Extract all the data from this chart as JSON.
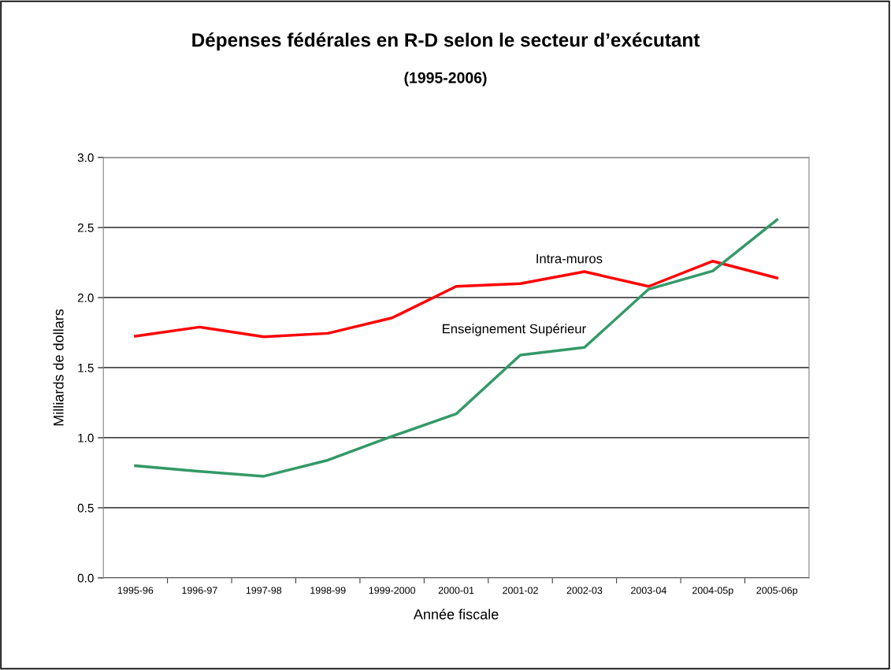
{
  "chart_data": {
    "type": "line",
    "title": "Dépenses fédérales en R-D selon le secteur d’exécutant",
    "subtitle": "(1995-2006)",
    "xlabel": "Année fiscale",
    "ylabel": "Milliards de dollars",
    "categories": [
      "1995-96",
      "1996-97",
      "1997-98",
      "1998-99",
      "1999-2000",
      "2000-01",
      "2001-02",
      "2002-03",
      "2003-04",
      "2004-05p",
      "2005-06p"
    ],
    "series": [
      {
        "name": "Intra-muros",
        "color": "#ff0000",
        "values": [
          1.725,
          1.79,
          1.72,
          1.745,
          1.855,
          2.08,
          2.1,
          2.185,
          2.08,
          2.26,
          2.14
        ]
      },
      {
        "name": "Enseignement Supérieur",
        "color": "#339966",
        "values": [
          0.8,
          0.76,
          0.725,
          0.84,
          1.01,
          1.17,
          1.59,
          1.645,
          2.06,
          2.19,
          2.555
        ]
      }
    ],
    "ylim": [
      0,
      3
    ],
    "yticks": [
      {
        "value": 0,
        "label": "0.0"
      },
      {
        "value": 0.5,
        "label": "0.5"
      },
      {
        "value": 1,
        "label": "1.0"
      },
      {
        "value": 1.5,
        "label": "1.5"
      },
      {
        "value": 2,
        "label": "2.0"
      },
      {
        "value": 2.5,
        "label": "2.5"
      },
      {
        "value": 3,
        "label": "3.0"
      }
    ],
    "grid": "y",
    "legend": false,
    "marker": "none",
    "line_style": "solid"
  }
}
